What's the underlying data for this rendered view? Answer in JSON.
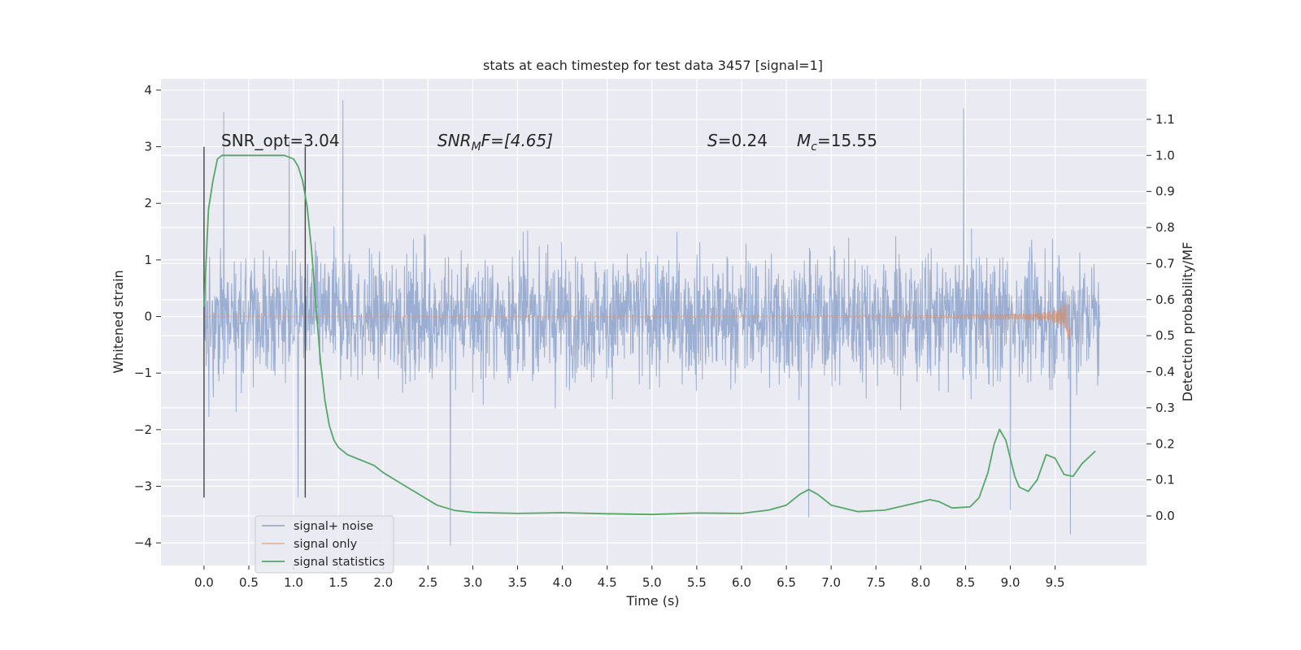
{
  "chart_data": {
    "type": "line",
    "title": "stats at each timestep for test data 3457 [signal=1]",
    "xlabel": "Time (s)",
    "ylabel": "Whitened strain",
    "y2label": "Detection probability/MF",
    "xlim": [
      -0.48,
      10.52
    ],
    "ylim": [
      -4.4,
      4.2
    ],
    "y2lim": [
      -0.1375,
      1.2125
    ],
    "xticks": [
      0.0,
      0.5,
      1.0,
      1.5,
      2.0,
      2.5,
      3.0,
      3.5,
      4.0,
      4.5,
      5.0,
      5.5,
      6.0,
      6.5,
      7.0,
      7.5,
      8.0,
      8.5,
      9.0,
      9.5
    ],
    "xtick_labels": [
      "0.0",
      "0.5",
      "1.0",
      "1.5",
      "2.0",
      "2.5",
      "3.0",
      "3.5",
      "4.0",
      "4.5",
      "5.0",
      "5.5",
      "6.0",
      "6.5",
      "7.0",
      "7.5",
      "8.0",
      "8.5",
      "9.0",
      "9.5"
    ],
    "yticks": [
      4,
      3,
      2,
      1,
      0,
      -1,
      -2,
      -3,
      -4
    ],
    "ytick_labels": [
      "4",
      "3",
      "2",
      "1",
      "0",
      "−1",
      "−2",
      "−3",
      "−4"
    ],
    "y2ticks": [
      1.1,
      1.0,
      0.9,
      0.8,
      0.7,
      0.6,
      0.5,
      0.4,
      0.3,
      0.2,
      0.1,
      0.0
    ],
    "y2tick_labels": [
      "1.1",
      "1.0",
      "0.9",
      "0.8",
      "0.7",
      "0.6",
      "0.5",
      "0.4",
      "0.3",
      "0.2",
      "0.1",
      "0.0"
    ],
    "grid": true,
    "legend_position": "lower-left",
    "annotations": {
      "snr_opt": "SNR_opt=3.04",
      "snr_mf_label": "SNR",
      "snr_mf_sub": "M",
      "snr_mf_rest": "F=[4.65]",
      "s_label": "S",
      "s_rest": "=0.24",
      "mc_label": "M",
      "mc_sub": "c",
      "mc_rest": "=15.55"
    },
    "vlines": [
      {
        "x": 0.0,
        "y_from": -3.2,
        "y_to": 3.0
      },
      {
        "x": 1.13,
        "y_from": -3.2,
        "y_to": 3.0
      }
    ],
    "series": [
      {
        "name": "signal+ noise",
        "color": "#4c72b0",
        "x_range": [
          0.0,
          10.0
        ],
        "envelope_peak_values": [
          {
            "x": 0.22,
            "y": 3.62
          },
          {
            "x": 1.55,
            "y": 3.82
          },
          {
            "x": 8.48,
            "y": 3.68
          },
          {
            "x": 2.75,
            "y": -4.05
          },
          {
            "x": 9.67,
            "y": -3.85
          },
          {
            "x": 6.75,
            "y": -3.55
          },
          {
            "x": 9.0,
            "y": -3.42
          },
          {
            "x": 1.05,
            "y": -3.2
          },
          {
            "x": 0.95,
            "y": 3.1
          }
        ]
      },
      {
        "name": "signal only",
        "color": "#dd8452",
        "x_range": [
          0.0,
          9.67
        ],
        "peak_amplitude": 0.5,
        "peak_time": 9.65
      },
      {
        "name": "signal statistics",
        "color": "#55a868",
        "axis": "right",
        "x": [
          0.0,
          0.05,
          0.1,
          0.15,
          0.2,
          0.3,
          0.5,
          0.7,
          0.9,
          1.0,
          1.05,
          1.1,
          1.15,
          1.2,
          1.25,
          1.3,
          1.35,
          1.4,
          1.45,
          1.5,
          1.6,
          1.7,
          1.8,
          1.9,
          2.0,
          2.2,
          2.4,
          2.6,
          2.8,
          3.0,
          3.5,
          4.0,
          4.5,
          5.0,
          5.5,
          6.0,
          6.3,
          6.5,
          6.65,
          6.75,
          6.85,
          7.0,
          7.3,
          7.6,
          7.9,
          8.1,
          8.2,
          8.35,
          8.55,
          8.65,
          8.75,
          8.82,
          8.88,
          8.95,
          9.0,
          9.05,
          9.1,
          9.2,
          9.3,
          9.4,
          9.5,
          9.6,
          9.7,
          9.8,
          9.95
        ],
        "values": [
          0.58,
          0.85,
          0.93,
          0.99,
          1.0,
          1.0,
          1.0,
          1.0,
          1.0,
          0.99,
          0.97,
          0.93,
          0.86,
          0.74,
          0.58,
          0.43,
          0.32,
          0.25,
          0.21,
          0.19,
          0.17,
          0.16,
          0.15,
          0.14,
          0.12,
          0.09,
          0.06,
          0.03,
          0.015,
          0.01,
          0.007,
          0.009,
          0.006,
          0.004,
          0.008,
          0.007,
          0.016,
          0.03,
          0.06,
          0.073,
          0.06,
          0.03,
          0.012,
          0.016,
          0.033,
          0.045,
          0.04,
          0.022,
          0.025,
          0.05,
          0.12,
          0.2,
          0.24,
          0.21,
          0.16,
          0.11,
          0.08,
          0.068,
          0.1,
          0.17,
          0.16,
          0.115,
          0.11,
          0.145,
          0.18
        ]
      }
    ]
  }
}
